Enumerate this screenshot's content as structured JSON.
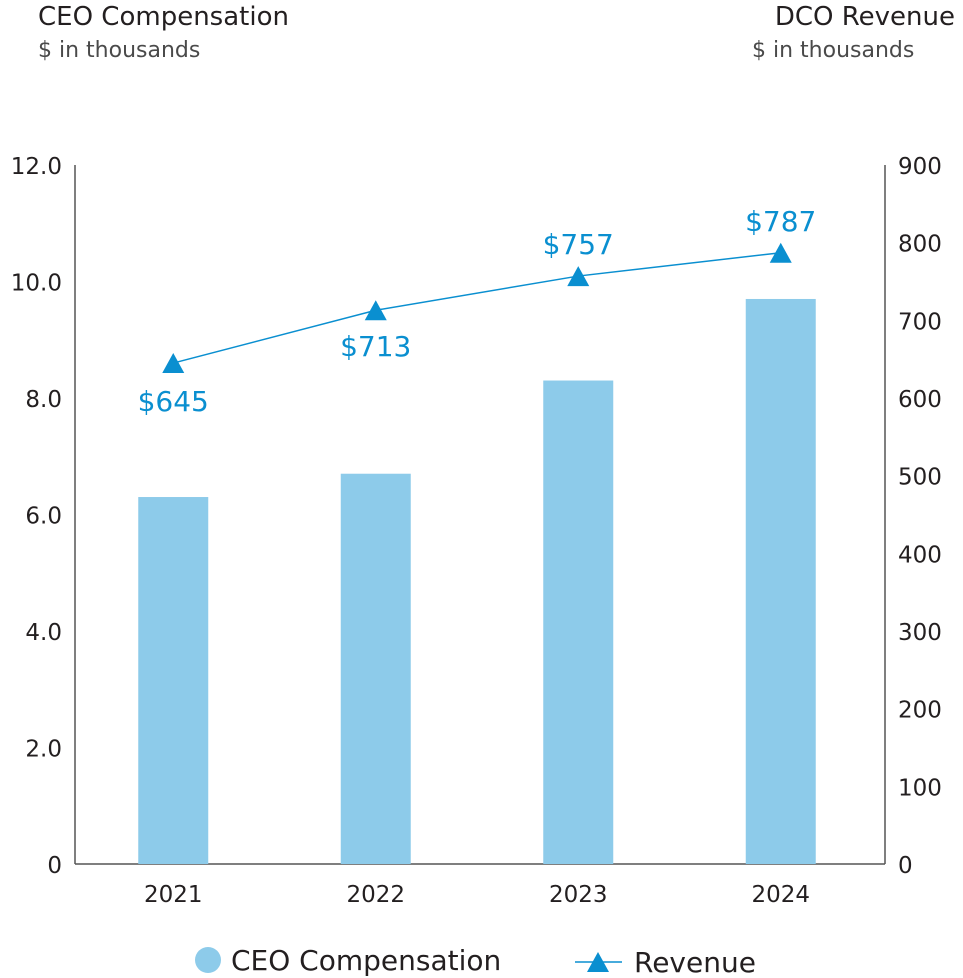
{
  "left_header": {
    "title": "CEO Compensation",
    "subtitle": "$ in thousands"
  },
  "right_header": {
    "title": "DCO Revenue",
    "subtitle": "$ in thousands"
  },
  "colors": {
    "bar": "#8dcbea",
    "line": "#0a8fd0",
    "axis": "#555555"
  },
  "chart_data": {
    "type": "bar+line",
    "categories": [
      "2021",
      "2022",
      "2023",
      "2024"
    ],
    "series": [
      {
        "name": "CEO Compensation",
        "type": "bar",
        "axis": "left",
        "values": [
          6.3,
          6.7,
          8.3,
          9.7
        ]
      },
      {
        "name": "Revenue",
        "type": "line",
        "axis": "right",
        "marker": "triangle",
        "values": [
          645,
          713,
          757,
          787
        ],
        "labels": [
          "$645",
          "$713",
          "$757",
          "$787"
        ]
      }
    ],
    "y_left": {
      "range": [
        0,
        12
      ],
      "ticks": [
        "0",
        "2.0",
        "4.0",
        "6.0",
        "8.0",
        "10.0",
        "12.0"
      ]
    },
    "y_right": {
      "range": [
        0,
        900
      ],
      "ticks": [
        "0",
        "100",
        "200",
        "300",
        "400",
        "500",
        "600",
        "700",
        "800",
        "900"
      ]
    },
    "grid": false,
    "legend": {
      "placement": "bottom",
      "entries": [
        "CEO Compensation",
        "Revenue"
      ]
    }
  }
}
